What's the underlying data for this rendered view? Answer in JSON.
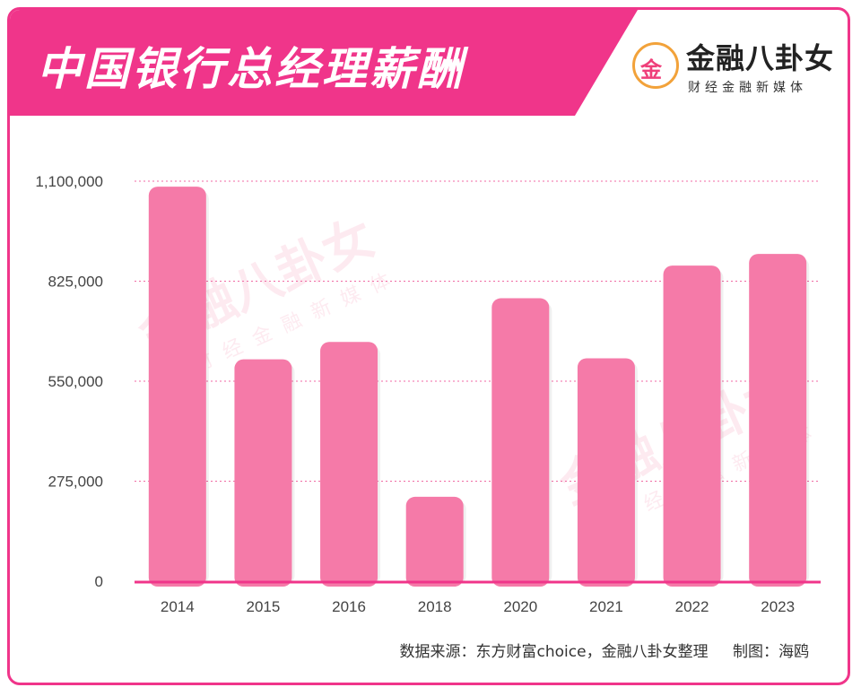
{
  "header": {
    "title": "中国银行总经理薪酬"
  },
  "logo": {
    "glyph": "金",
    "name": "金融八卦女",
    "subtitle": "财经金融新媒体"
  },
  "footer": {
    "source": "数据来源：东方财富choice，金融八卦女整理",
    "maker": "制图：海鸥"
  },
  "colors": {
    "accent": "#f0358a",
    "bar": "#f57aa8",
    "bar_highlight": "#f78fb6",
    "gridline": "#f06aa4"
  },
  "chart_data": {
    "type": "bar",
    "title": "中国银行总经理薪酬",
    "xlabel": "",
    "ylabel": "",
    "categories": [
      "2014",
      "2015",
      "2016",
      "2018",
      "2020",
      "2021",
      "2022",
      "2023"
    ],
    "values": [
      1085000,
      610000,
      658000,
      232000,
      778000,
      613000,
      868000,
      900000
    ],
    "ylim": [
      0,
      1100000
    ],
    "yticks": [
      0,
      275000,
      550000,
      825000,
      1100000
    ],
    "ytick_labels": [
      "0",
      "275,000",
      "550,000",
      "825,000",
      "1,100,000"
    ],
    "grid": true,
    "legend": "none"
  }
}
